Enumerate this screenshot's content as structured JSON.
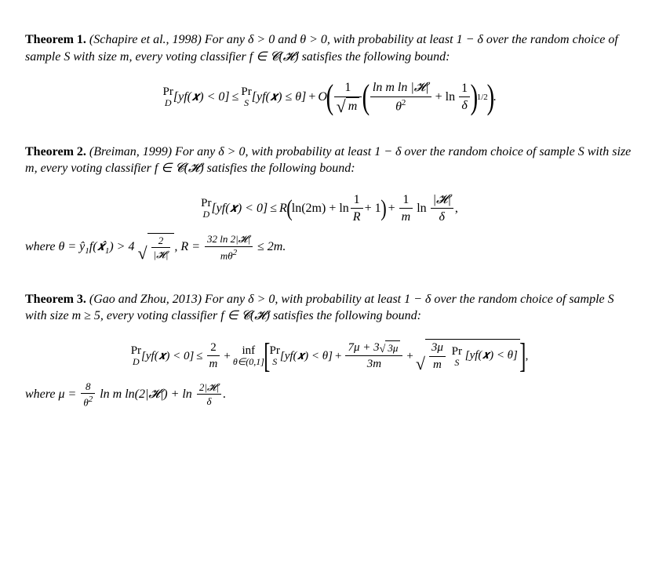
{
  "theorem1": {
    "heading": "Theorem 1.",
    "citation": "(Schapire et al., 1998)",
    "text_a": "For any",
    "cond1": "δ > 0",
    "text_and": "and",
    "cond2": "θ > 0",
    "text_b": ", with probability at least",
    "prob": "1 − δ",
    "text_c": "over the random choice of sample",
    "sample": "S",
    "text_d": "with size",
    "size": "m",
    "text_e": ", every voting classifier",
    "classifier": "f ∈ 𝓒(𝓗)",
    "text_f": "satisfies the following bound:",
    "eq": {
      "Pr": "Pr",
      "D": "D",
      "S": "S",
      "lhs": "[yf(𝒙) < 0]",
      "le": "≤",
      "rhs1": "[yf(𝒙) ≤ θ]",
      "plus": "+",
      "O": "O",
      "frac1_num": "1",
      "frac1_den_sqrt": "m",
      "frac2_num": "ln m ln |𝓗|",
      "frac2_den": "θ",
      "frac2_den_exp": "2",
      "plus2": "+ ln",
      "frac3_num": "1",
      "frac3_den": "δ",
      "exp": "1/2",
      "dot": "."
    }
  },
  "theorem2": {
    "heading": "Theorem 2.",
    "citation": "(Breiman, 1999)",
    "text_a": "For any",
    "cond1": "δ > 0",
    "text_b": ", with probability at least",
    "prob": "1 − δ",
    "text_c": "over the random choice of sample",
    "sample": "S",
    "text_d": "with size",
    "size": "m",
    "text_e": ", every voting classifier",
    "classifier": "f ∈ 𝓒(𝓗)",
    "text_f": "satisfies the following bound:",
    "eq": {
      "Pr": "Pr",
      "D": "D",
      "lhs": "[yf(𝒙) < 0]",
      "le": "≤",
      "R": "R",
      "t1": "ln(2m) + ln",
      "f1_num": "1",
      "f1_den": "R",
      "t2": "+ 1",
      "plus": "+",
      "f2_num": "1",
      "f2_den": "m",
      "t3": "ln",
      "f3_num": "|𝓗|",
      "f3_den": "δ",
      "comma": ","
    },
    "where": {
      "label": "where",
      "theta": "θ = ŷ",
      "sub1": "1",
      "fxhat": "f(𝒙̂",
      "sub1b": "1",
      "close": ") > 4",
      "sq_num": "2",
      "sq_den": "|𝓗|",
      "comma1": ", ",
      "Rdef": "R =",
      "R_num": "32 ln 2|𝓗|",
      "R_den": "mθ",
      "R_den_exp": "2",
      "le": "≤ 2m",
      "dot": "."
    }
  },
  "theorem3": {
    "heading": "Theorem 3.",
    "citation": "(Gao and Zhou, 2013)",
    "text_a": "For any",
    "cond1": "δ > 0",
    "text_b": ", with probability at least",
    "prob": "1 − δ",
    "text_c": "over the random choice of sample",
    "sample": "S",
    "text_d": "with size",
    "size": "m ≥ 5",
    "text_e": ", every voting classifier",
    "classifier": "f ∈ 𝓒(𝓗)",
    "text_f": "satisfies the following bound:",
    "eq": {
      "Pr": "Pr",
      "D": "D",
      "S": "S",
      "lhs": "[yf(𝒙) < 0]",
      "le": "≤",
      "f1_num": "2",
      "f1_den": "m",
      "plus1": "+",
      "inf": "inf",
      "inf_sub": "θ∈(0,1]",
      "t1": "[yf(𝒙) < θ]",
      "plus2": "+",
      "f2_num_a": "7μ + 3",
      "f2_num_sqrt": "3μ",
      "f2_den": "3m",
      "plus3": "+",
      "f3_num": "3μ",
      "f3_den": "m",
      "t2": "[yf(𝒙) < θ]",
      "comma": ","
    },
    "where": {
      "label": "where",
      "mu": "μ =",
      "f_num": "8",
      "f_den": "θ",
      "f_den_exp": "2",
      "t1": "ln m ln(2|𝓗|) + ln",
      "f2_num": "2|𝓗|",
      "f2_den": "δ",
      "dot": "."
    }
  },
  "style": {
    "font_family": "Times New Roman",
    "font_size_body": 16,
    "font_size_small": 13,
    "text_color": "#000000",
    "background_color": "#ffffff"
  }
}
